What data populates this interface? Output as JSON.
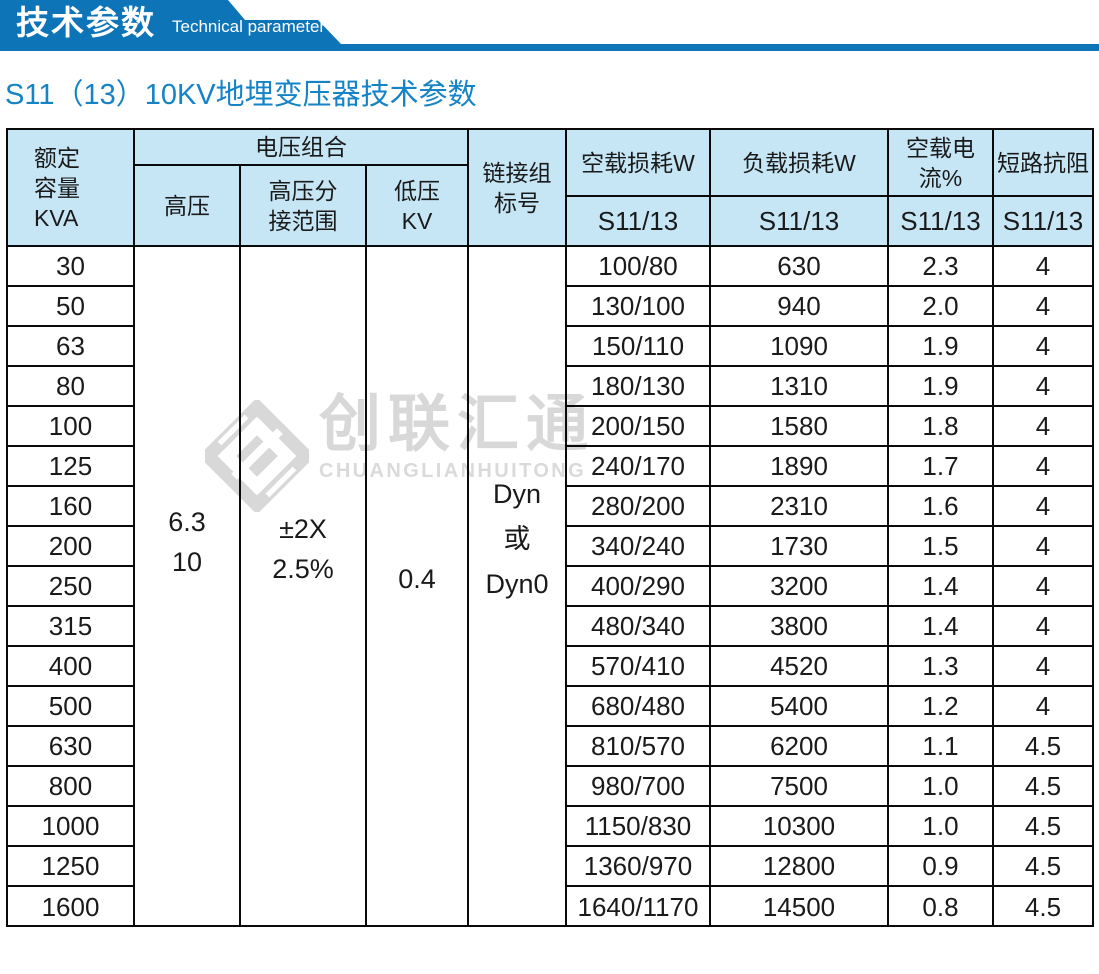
{
  "banner": {
    "title_zh": "技术参数",
    "title_en": "Technical parameter"
  },
  "page_title": "S11（13）10KV地埋变压器技术参数",
  "watermark": {
    "logo_icon": "diamond-logo",
    "name_zh": "创联汇通",
    "name_en": "CHUANGLIANHUITONG"
  },
  "colors": {
    "banner_blue": "#0e74b8",
    "title_blue": "#1583c6",
    "header_bg": "#c6e6f5",
    "border": "#0a0a0a",
    "watermark_gray": "#d8d8d8"
  },
  "table": {
    "headers": {
      "rated_capacity": "额定\n容量\nKVA",
      "voltage_group": "电压组合",
      "hv": "高压",
      "hv_tap": "高压分\n接范围",
      "lv": "低压\nKV",
      "vector_group": "链接组\n标号",
      "no_load_loss": "空载损耗W",
      "load_loss": "负载损耗W",
      "no_load_current": "空载电流%",
      "impedance": "短路抗阻",
      "sub_no_load_loss": "S11/13",
      "sub_load_loss": "S11/13",
      "sub_no_load_current": "S11/13",
      "sub_impedance": "S11/13"
    },
    "merged": {
      "hv": "6.3\n10",
      "hv_tap": "±2X\n2.5%",
      "lv": "0.4",
      "vector": "Dyn\n或\nDyn0"
    },
    "rows": [
      {
        "kva": "30",
        "no_load_loss": "100/80",
        "load_loss": "630",
        "no_load_current": "2.3",
        "impedance": "4"
      },
      {
        "kva": "50",
        "no_load_loss": "130/100",
        "load_loss": "940",
        "no_load_current": "2.0",
        "impedance": "4"
      },
      {
        "kva": "63",
        "no_load_loss": "150/110",
        "load_loss": "1090",
        "no_load_current": "1.9",
        "impedance": "4"
      },
      {
        "kva": "80",
        "no_load_loss": "180/130",
        "load_loss": "1310",
        "no_load_current": "1.9",
        "impedance": "4"
      },
      {
        "kva": "100",
        "no_load_loss": "200/150",
        "load_loss": "1580",
        "no_load_current": "1.8",
        "impedance": "4"
      },
      {
        "kva": "125",
        "no_load_loss": "240/170",
        "load_loss": "1890",
        "no_load_current": "1.7",
        "impedance": "4"
      },
      {
        "kva": "160",
        "no_load_loss": "280/200",
        "load_loss": "2310",
        "no_load_current": "1.6",
        "impedance": "4"
      },
      {
        "kva": "200",
        "no_load_loss": "340/240",
        "load_loss": "1730",
        "no_load_current": "1.5",
        "impedance": "4"
      },
      {
        "kva": "250",
        "no_load_loss": "400/290",
        "load_loss": "3200",
        "no_load_current": "1.4",
        "impedance": "4"
      },
      {
        "kva": "315",
        "no_load_loss": "480/340",
        "load_loss": "3800",
        "no_load_current": "1.4",
        "impedance": "4"
      },
      {
        "kva": "400",
        "no_load_loss": "570/410",
        "load_loss": "4520",
        "no_load_current": "1.3",
        "impedance": "4"
      },
      {
        "kva": "500",
        "no_load_loss": "680/480",
        "load_loss": "5400",
        "no_load_current": "1.2",
        "impedance": "4"
      },
      {
        "kva": "630",
        "no_load_loss": "810/570",
        "load_loss": "6200",
        "no_load_current": "1.1",
        "impedance": "4.5"
      },
      {
        "kva": "800",
        "no_load_loss": "980/700",
        "load_loss": "7500",
        "no_load_current": "1.0",
        "impedance": "4.5"
      },
      {
        "kva": "1000",
        "no_load_loss": "1150/830",
        "load_loss": "10300",
        "no_load_current": "1.0",
        "impedance": "4.5"
      },
      {
        "kva": "1250",
        "no_load_loss": "1360/970",
        "load_loss": "12800",
        "no_load_current": "0.9",
        "impedance": "4.5"
      },
      {
        "kva": "1600",
        "no_load_loss": "1640/1170",
        "load_loss": "14500",
        "no_load_current": "0.8",
        "impedance": "4.5"
      }
    ]
  }
}
